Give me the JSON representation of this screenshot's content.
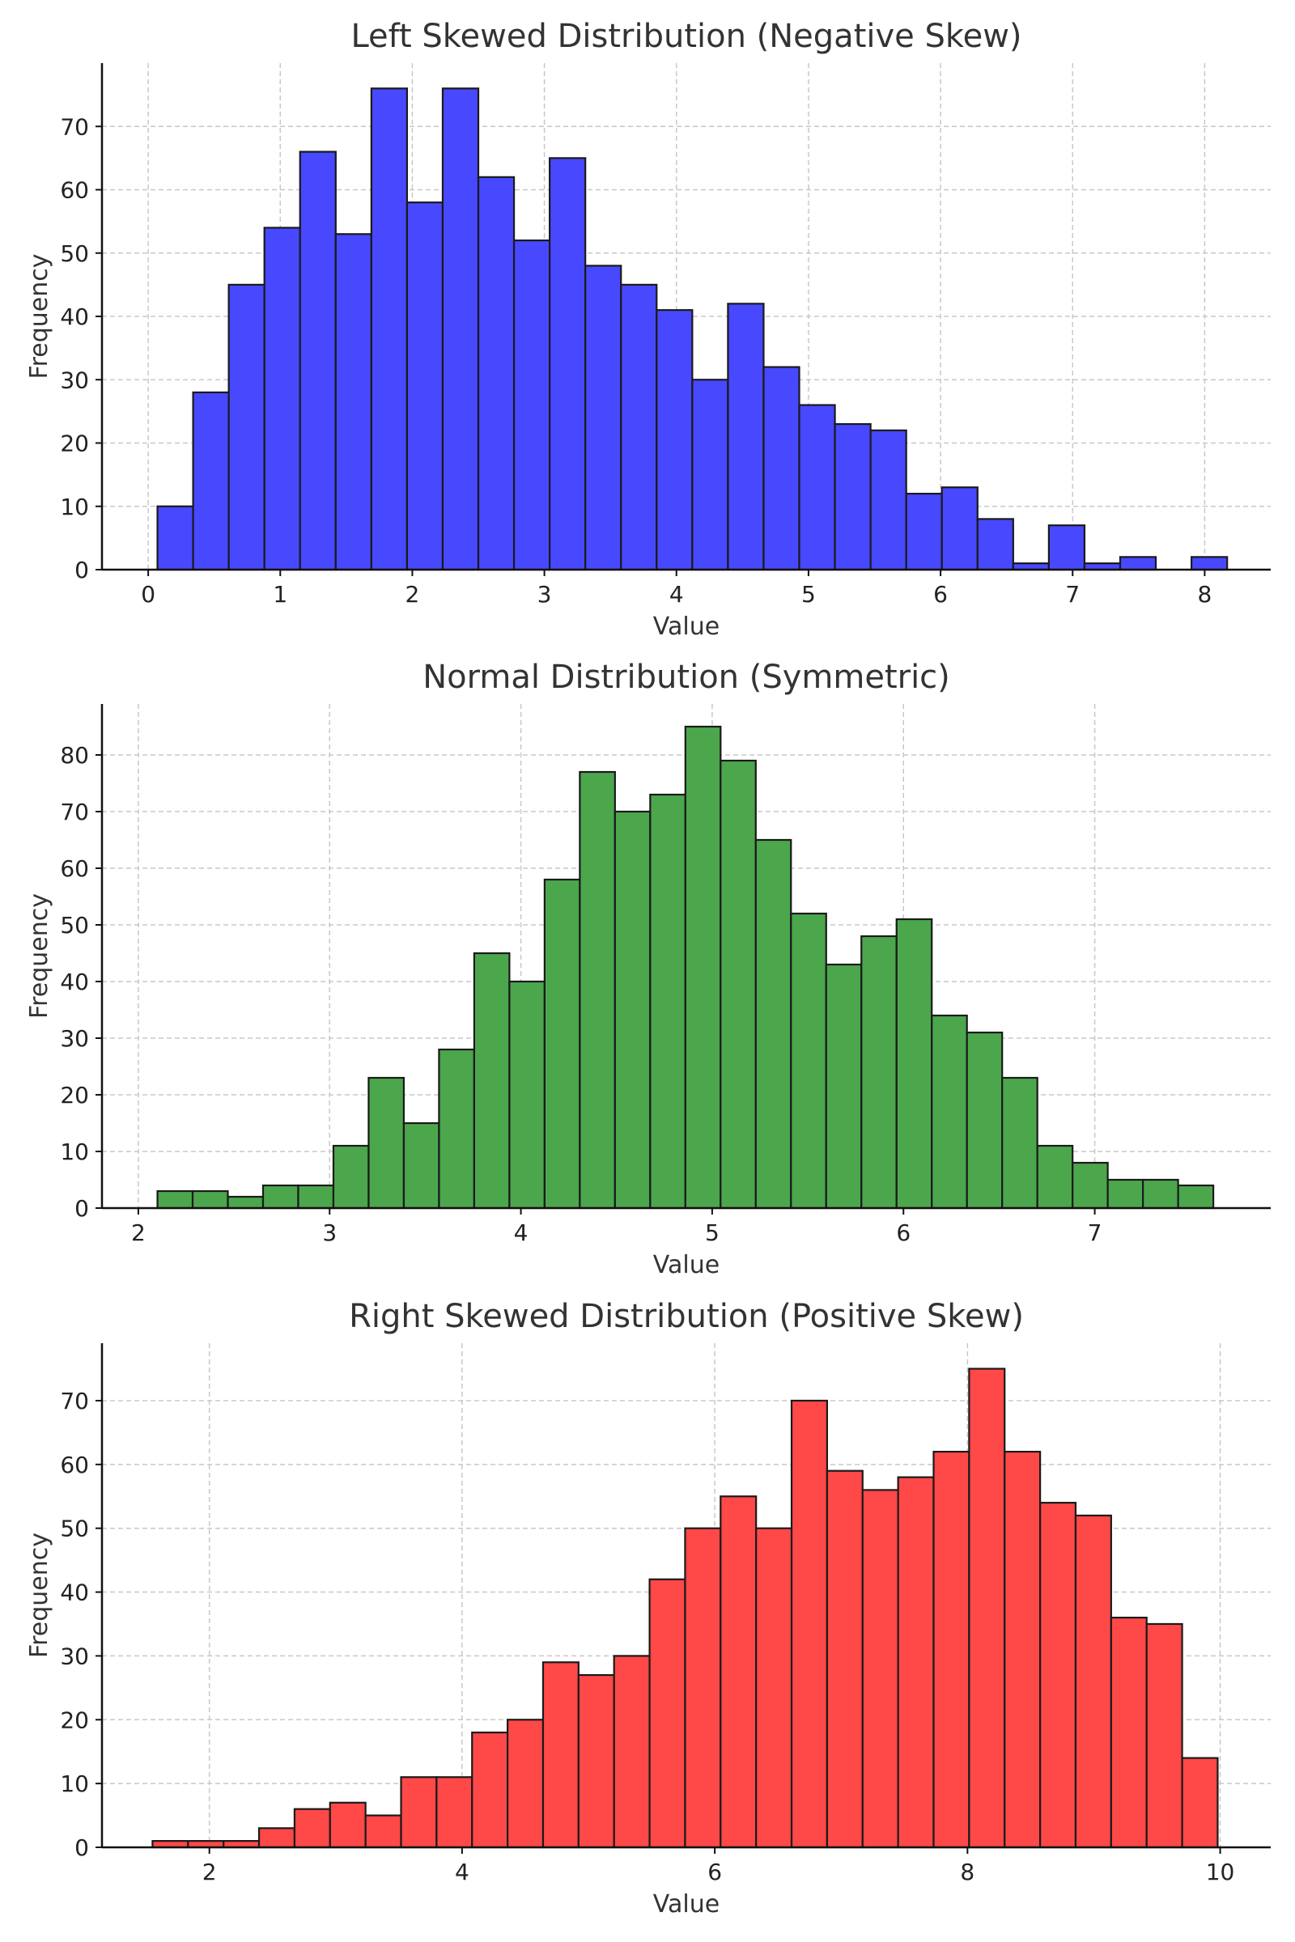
{
  "chart_data": [
    {
      "type": "bar",
      "title": "Left Skewed Distribution (Negative Skew)",
      "xlabel": "Value",
      "ylabel": "Frequency",
      "color": "#4848ff",
      "xlim": [
        -0.35,
        8.5
      ],
      "ylim": [
        0,
        80
      ],
      "xticks": [
        0,
        1,
        2,
        3,
        4,
        5,
        6,
        7,
        8
      ],
      "yticks": [
        0,
        10,
        20,
        30,
        40,
        50,
        60,
        70
      ],
      "bin_start": 0.07,
      "bin_width": 0.27,
      "values": [
        10,
        28,
        45,
        54,
        66,
        53,
        76,
        58,
        76,
        62,
        52,
        65,
        48,
        45,
        41,
        30,
        42,
        32,
        26,
        23,
        22,
        12,
        13,
        8,
        1,
        7,
        1,
        2,
        0,
        2
      ],
      "grid": true
    },
    {
      "type": "bar",
      "title": "Normal Distribution (Symmetric)",
      "xlabel": "Value",
      "ylabel": "Frequency",
      "color": "#4ca64c",
      "xlim": [
        1.81,
        7.92
      ],
      "ylim": [
        0,
        89
      ],
      "xticks": [
        2,
        3,
        4,
        5,
        6,
        7
      ],
      "yticks": [
        0,
        10,
        20,
        30,
        40,
        50,
        60,
        70,
        80
      ],
      "bin_start": 2.1,
      "bin_width": 0.184,
      "values": [
        3,
        3,
        2,
        4,
        4,
        11,
        23,
        15,
        28,
        45,
        40,
        58,
        77,
        70,
        73,
        85,
        79,
        65,
        52,
        43,
        48,
        51,
        34,
        31,
        23,
        11,
        8,
        5,
        5,
        4
      ],
      "grid": true
    },
    {
      "type": "bar",
      "title": "Right Skewed Distribution (Positive Skew)",
      "xlabel": "Value",
      "ylabel": "Frequency",
      "color": "#ff4848",
      "xlim": [
        1.15,
        10.4
      ],
      "ylim": [
        0,
        79
      ],
      "xticks": [
        2,
        4,
        6,
        8,
        10
      ],
      "yticks": [
        0,
        10,
        20,
        30,
        40,
        50,
        60,
        70
      ],
      "bin_start": 1.55,
      "bin_width": 0.281,
      "values": [
        1,
        1,
        1,
        3,
        6,
        7,
        5,
        11,
        11,
        18,
        20,
        29,
        27,
        30,
        42,
        50,
        55,
        50,
        70,
        59,
        56,
        58,
        62,
        75,
        62,
        54,
        52,
        36,
        35,
        14
      ],
      "grid": true
    }
  ]
}
